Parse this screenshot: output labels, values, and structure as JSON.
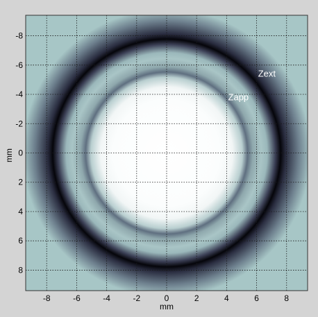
{
  "chart_data": {
    "type": "heatmap",
    "title": "",
    "xlabel": "mm",
    "ylabel": "mm",
    "xlim": [
      -9.4,
      9.4
    ],
    "ylim": [
      -9.4,
      9.4
    ],
    "y_axis_inverted": true,
    "grid": true,
    "grid_style": "dotted",
    "x_ticks": [
      -8,
      -6,
      -4,
      -2,
      0,
      2,
      4,
      6,
      8
    ],
    "y_ticks": [
      -8,
      -6,
      -4,
      -2,
      0,
      2,
      4,
      6,
      8
    ],
    "x_tick_labels": [
      "-8",
      "-6",
      "-4",
      "-2",
      "0",
      "2",
      "4",
      "6",
      "8"
    ],
    "y_tick_labels": [
      "-8",
      "-6",
      "-4",
      "-2",
      "0",
      "2",
      "4",
      "6",
      "8"
    ],
    "colormap": "bone (inverted)",
    "rings": [
      {
        "label": "Zext",
        "radius_mm": 7.6,
        "intensity": "darkest"
      },
      {
        "label": "Zapp",
        "radius_mm": 5.4,
        "intensity": "medium"
      }
    ],
    "annotations": [
      {
        "text": "Zext",
        "x": 6.1,
        "y": -5.2
      },
      {
        "text": "Zapp",
        "x": 4.1,
        "y": -3.6
      }
    ],
    "center_intensity": "brightest"
  },
  "colors": {
    "background": "#d4d4d4",
    "field": "#a7c6c6",
    "center": "#ffffff",
    "ring_dark": "#05050a",
    "annotation": "#ffffff",
    "grid": "#1a1a1a"
  }
}
